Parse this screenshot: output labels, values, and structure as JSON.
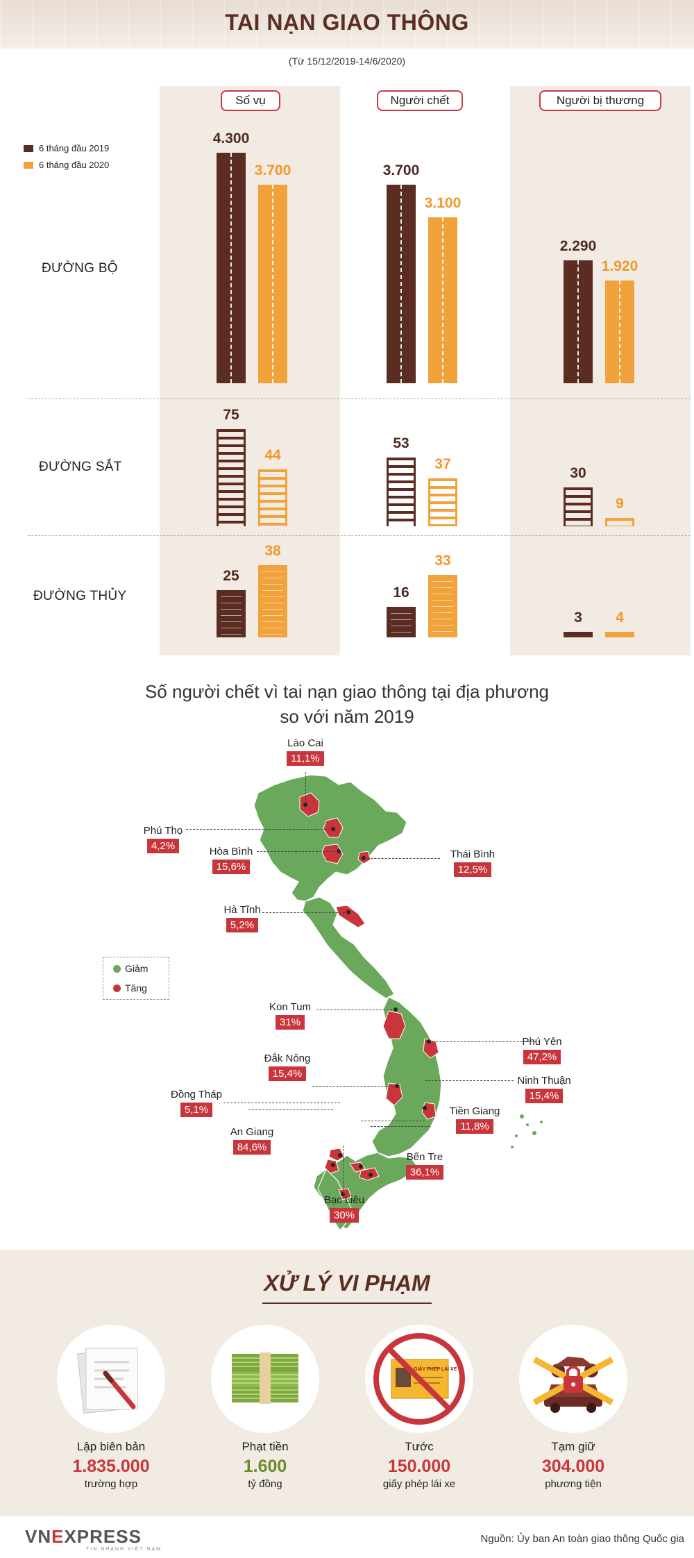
{
  "header": {
    "title": "TAI NẠN GIAO THÔNG",
    "subtitle": "(Từ 15/12/2019-14/6/2020)"
  },
  "columns": [
    "Số vụ",
    "Người chết",
    "Người bị thương"
  ],
  "legend": {
    "y2019": "6 tháng đầu 2019",
    "y2020": "6 tháng đầu 2020",
    "color_2019": "#5b2c22",
    "color_2020": "#f2a23a"
  },
  "rows": [
    "ĐƯỜNG BỘ",
    "ĐƯỜNG SẮT",
    "ĐƯỜNG THỦY"
  ],
  "chart_data": {
    "type": "bar",
    "categories": [
      "Số vụ",
      "Người chết",
      "Người bị thương"
    ],
    "groups": [
      {
        "name": "ĐƯỜNG BỘ",
        "series": [
          {
            "name": "6 tháng đầu 2019",
            "values": [
              4300,
              3700,
              2290
            ],
            "labels": [
              "4.300",
              "3.700",
              "2.290"
            ]
          },
          {
            "name": "6 tháng đầu 2020",
            "values": [
              3700,
              3100,
              1920
            ],
            "labels": [
              "3.700",
              "3.100",
              "1.920"
            ]
          }
        ]
      },
      {
        "name": "ĐƯỜNG SẮT",
        "series": [
          {
            "name": "6 tháng đầu 2019",
            "values": [
              75,
              53,
              30
            ],
            "labels": [
              "75",
              "53",
              "30"
            ]
          },
          {
            "name": "6 tháng đầu 2020",
            "values": [
              44,
              37,
              9
            ],
            "labels": [
              "44",
              "37",
              "9"
            ]
          }
        ]
      },
      {
        "name": "ĐƯỜNG THỦY",
        "series": [
          {
            "name": "6 tháng đầu 2019",
            "values": [
              25,
              16,
              3
            ],
            "labels": [
              "25",
              "16",
              "3"
            ]
          },
          {
            "name": "6 tháng đầu 2020",
            "values": [
              38,
              33,
              4
            ],
            "labels": [
              "38",
              "33",
              "4"
            ]
          }
        ]
      }
    ]
  },
  "map": {
    "title_line1": "Số người chết vì tai nạn giao thông tại địa phương",
    "title_line2": "so với năm 2019",
    "legend_decrease": "Giảm",
    "legend_increase": "Tăng",
    "color_decrease": "#6aa85c",
    "color_increase": "#c8363c",
    "provinces": [
      {
        "name": "Lào Cai",
        "pct": "11,1%"
      },
      {
        "name": "Phú Thọ",
        "pct": "4,2%"
      },
      {
        "name": "Hòa Bình",
        "pct": "15,6%"
      },
      {
        "name": "Thái Bình",
        "pct": "12,5%"
      },
      {
        "name": "Hà Tĩnh",
        "pct": "5,2%"
      },
      {
        "name": "Kon Tum",
        "pct": "31%"
      },
      {
        "name": "Phú Yên",
        "pct": "47,2%"
      },
      {
        "name": "Đắk Nông",
        "pct": "15,4%"
      },
      {
        "name": "Ninh Thuận",
        "pct": "15,4%"
      },
      {
        "name": "Đồng Tháp",
        "pct": "5,1%"
      },
      {
        "name": "Tiền Giang",
        "pct": "11,8%"
      },
      {
        "name": "An Giang",
        "pct": "84,6%"
      },
      {
        "name": "Bến Tre",
        "pct": "36,1%"
      },
      {
        "name": "Bạc Liêu",
        "pct": "30%"
      }
    ]
  },
  "violations": {
    "title": "XỬ LÝ VI PHẠM",
    "license_card_text": "GIẤY PHÉP LÁI XE",
    "items": [
      {
        "label": "Lập biên bản",
        "value": "1.835.000",
        "unit": "trường hợp",
        "icon": "document-pen-icon"
      },
      {
        "label": "Phạt tiền",
        "value": "1.600",
        "unit": "tỷ đồng",
        "icon": "money-stack-icon"
      },
      {
        "label": "Tước",
        "value": "150.000",
        "unit": "giấy phép lái xe",
        "icon": "revoked-license-icon"
      },
      {
        "label": "Tạm giữ",
        "value": "304.000",
        "unit": "phương tiện",
        "icon": "impounded-vehicle-icon"
      }
    ]
  },
  "footer": {
    "logo_left": "VN",
    "logo_e": "E",
    "logo_right": "XPRESS",
    "logo_tagline": "TIN NHANH VIỆT NAM",
    "source": "Nguồn: Ủy ban An toàn giao thông Quốc gia"
  }
}
